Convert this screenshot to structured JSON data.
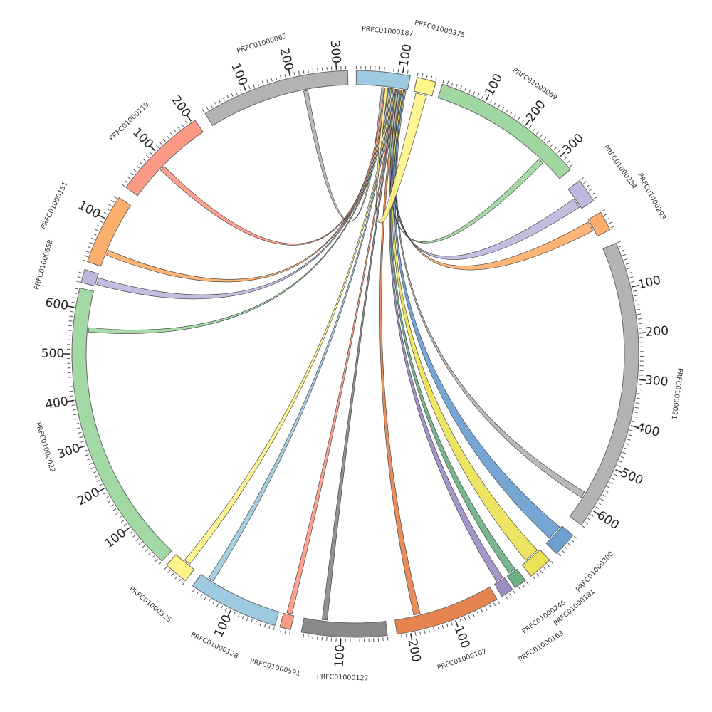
{
  "chart_data": {
    "type": "chord",
    "tick_minor_interval": 10,
    "tick_label_interval": 100,
    "segments": [
      {
        "name": "PRFC01000187",
        "length": 117,
        "color": "#9ecae1"
      },
      {
        "name": "PRFC01000375",
        "length": 42,
        "color": "#fff38a"
      },
      {
        "name": "PRFC01000069",
        "length": 335,
        "color": "#a0d6a0"
      },
      {
        "name": "PRFC01000284",
        "length": 53,
        "color": "#bcb9dc"
      },
      {
        "name": "PRFC01000293",
        "length": 43,
        "color": "#fdae6b"
      },
      {
        "name": "PRFC01000021",
        "length": 640,
        "color": "#b3b3b3"
      },
      {
        "name": "PRFC01000300",
        "length": 53,
        "color": "#6a9fd0"
      },
      {
        "name": "PRFC01000181",
        "length": 53,
        "color": "#ece256"
      },
      {
        "name": "PRFC01000246",
        "length": 27,
        "color": "#6bb083"
      },
      {
        "name": "PRFC01000163",
        "length": 27,
        "color": "#9c8dc4"
      },
      {
        "name": "PRFC01000107",
        "length": 229,
        "color": "#e6844f"
      },
      {
        "name": "PRFC01000127",
        "length": 186,
        "color": "#898989"
      },
      {
        "name": "PRFC01000591",
        "length": 24,
        "color": "#fc9983"
      },
      {
        "name": "PRFC01000128",
        "length": 197,
        "color": "#9ecae1"
      },
      {
        "name": "PRFC01000325",
        "length": 53,
        "color": "#fff38a"
      },
      {
        "name": "PRFC01000022",
        "length": 643,
        "color": "#a1d8a3"
      },
      {
        "name": "PRFC01000658",
        "length": 29,
        "color": "#bcb9dc"
      },
      {
        "name": "PRFC01000151",
        "length": 154,
        "color": "#fdae6b"
      },
      {
        "name": "PRFC01000119",
        "length": 208,
        "color": "#fc9a85"
      },
      {
        "name": "PRFC01000065",
        "length": 324,
        "color": "#b3b3b3"
      }
    ],
    "links": [
      {
        "source": "PRFC01000187",
        "source_range": [
          58,
          64
        ],
        "target": "PRFC01000065",
        "target_range": [
          222,
          232
        ]
      },
      {
        "source": "PRFC01000187",
        "source_range": [
          64,
          70
        ],
        "target": "PRFC01000119",
        "target_range": [
          78,
          90
        ]
      },
      {
        "source": "PRFC01000187",
        "source_range": [
          70,
          74
        ],
        "target": "PRFC01000151",
        "target_range": [
          28,
          40
        ]
      },
      {
        "source": "PRFC01000187",
        "source_range": [
          74,
          78
        ],
        "target": "PRFC01000658",
        "target_range": [
          4,
          20
        ]
      },
      {
        "source": "PRFC01000187",
        "source_range": [
          78,
          81
        ],
        "target": "PRFC01000022",
        "target_range": [
          550,
          560
        ]
      },
      {
        "source": "PRFC01000187",
        "source_range": [
          81,
          84
        ],
        "target": "PRFC01000325",
        "target_range": [
          15,
          30
        ]
      },
      {
        "source": "PRFC01000187",
        "source_range": [
          84,
          87
        ],
        "target": "PRFC01000128",
        "target_range": [
          165,
          178
        ]
      },
      {
        "source": "PRFC01000187",
        "source_range": [
          87,
          90
        ],
        "target": "PRFC01000591",
        "target_range": [
          5,
          17
        ]
      },
      {
        "source": "PRFC01000187",
        "source_range": [
          90,
          94
        ],
        "target": "PRFC01000127",
        "target_range": [
          133,
          145
        ]
      },
      {
        "source": "PRFC01000187",
        "source_range": [
          94,
          99
        ],
        "target": "PRFC01000107",
        "target_range": [
          170,
          185
        ]
      },
      {
        "source": "PRFC01000187",
        "source_range": [
          99,
          102
        ],
        "target": "PRFC01000163",
        "target_range": [
          3,
          20
        ]
      },
      {
        "source": "PRFC01000187",
        "source_range": [
          102,
          105
        ],
        "target": "PRFC01000246",
        "target_range": [
          3,
          20
        ]
      },
      {
        "source": "PRFC01000187",
        "source_range": [
          105,
          108
        ],
        "target": "PRFC01000181",
        "target_range": [
          5,
          40
        ]
      },
      {
        "source": "PRFC01000187",
        "source_range": [
          108,
          111
        ],
        "target": "PRFC01000300",
        "target_range": [
          5,
          40
        ]
      },
      {
        "source": "PRFC01000187",
        "source_range": [
          111,
          114
        ],
        "target": "PRFC01000021",
        "target_range": [
          575,
          590
        ]
      },
      {
        "source": "PRFC01000187",
        "source_range": [
          100,
          103
        ],
        "target": "PRFC01000293",
        "target_range": [
          5,
          28
        ]
      },
      {
        "source": "PRFC01000187",
        "source_range": [
          97,
          101
        ],
        "target": "PRFC01000284",
        "target_range": [
          25,
          48
        ]
      },
      {
        "source": "PRFC01000187",
        "source_range": [
          92,
          96
        ],
        "target": "PRFC01000069",
        "target_range": [
          270,
          283
        ]
      },
      {
        "source": "PRFC01000187",
        "source_range": [
          66,
          72
        ],
        "target": "PRFC01000375",
        "target_range": [
          5,
          30
        ]
      }
    ]
  }
}
